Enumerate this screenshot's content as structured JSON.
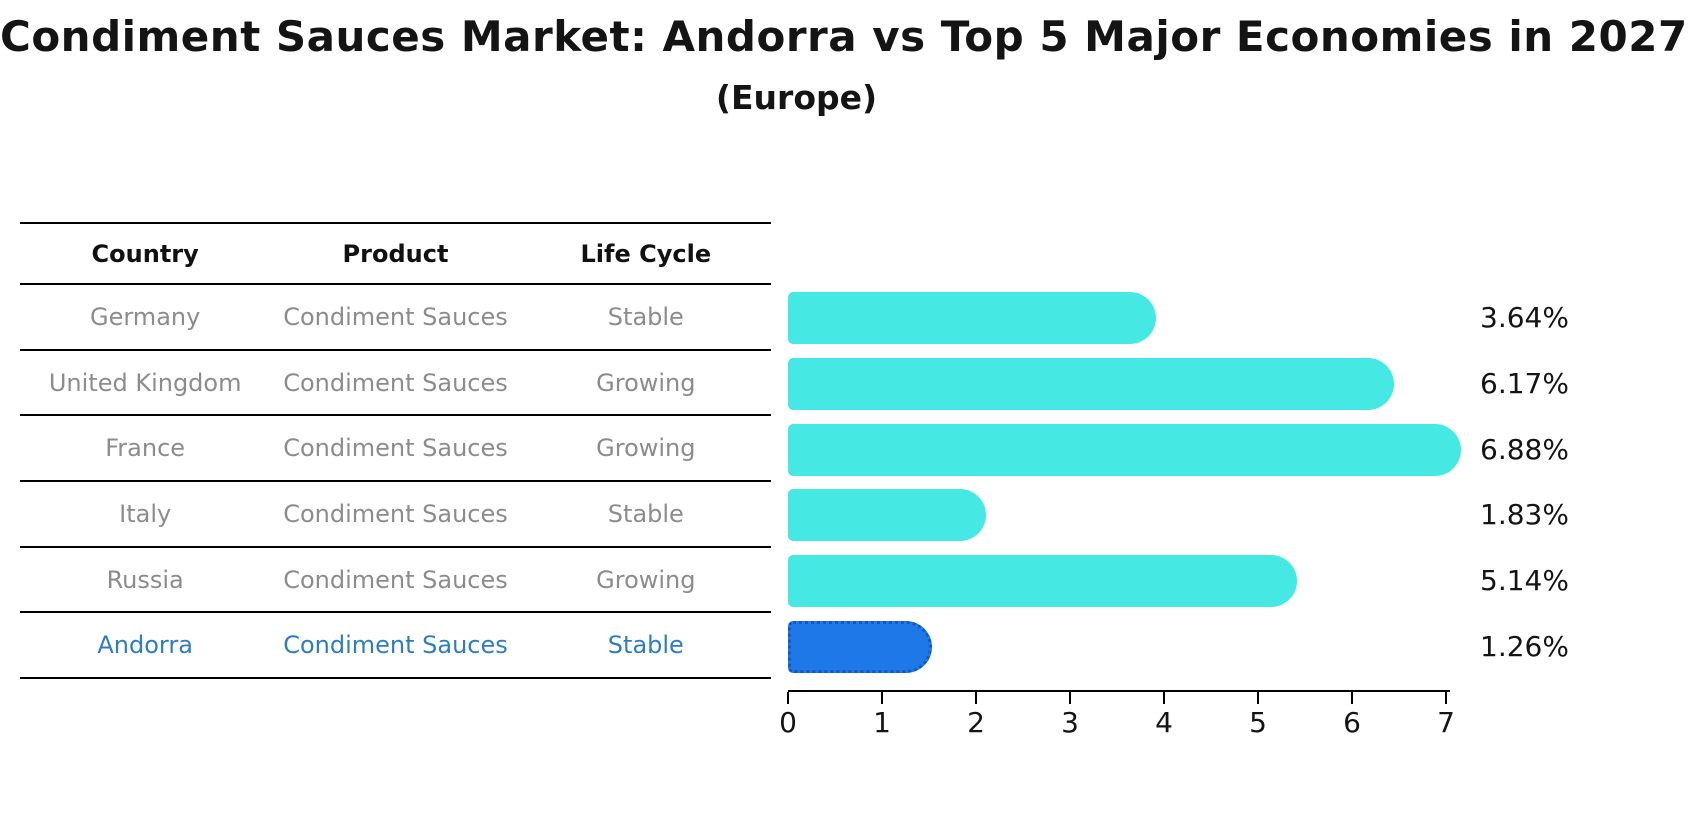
{
  "title": "Condiment Sauces Market: Andorra vs Top 5 Major Economies in 2027",
  "subtitle": "(Europe)",
  "table": {
    "columns": [
      "Country",
      "Product",
      "Life Cycle"
    ],
    "rows": [
      {
        "country": "Germany",
        "product": "Condiment Sauces",
        "life_cycle": "Stable",
        "highlight": false
      },
      {
        "country": "United Kingdom",
        "product": "Condiment Sauces",
        "life_cycle": "Growing",
        "highlight": false
      },
      {
        "country": "France",
        "product": "Condiment Sauces",
        "life_cycle": "Growing",
        "highlight": false
      },
      {
        "country": "Italy",
        "product": "Condiment Sauces",
        "life_cycle": "Stable",
        "highlight": false
      },
      {
        "country": "Russia",
        "product": "Condiment Sauces",
        "life_cycle": "Growing",
        "highlight": false
      },
      {
        "country": "Andorra",
        "product": "Condiment Sauces",
        "life_cycle": "Stable",
        "highlight": true
      }
    ]
  },
  "chart_data": {
    "type": "bar",
    "orientation": "horizontal",
    "title": "Condiment Sauces Market: Andorra vs Top 5 Major Economies in 2027",
    "subtitle": "(Europe)",
    "categories": [
      "Germany",
      "United Kingdom",
      "France",
      "Italy",
      "Russia",
      "Andorra"
    ],
    "values": [
      3.64,
      6.17,
      6.88,
      1.83,
      5.14,
      1.26
    ],
    "value_labels": [
      "3.64%",
      "6.17%",
      "6.88%",
      "1.83%",
      "5.14%",
      "1.26%"
    ],
    "xlabel": "",
    "ylabel": "",
    "xlim": [
      0,
      7.05
    ],
    "xticks": [
      0,
      1,
      2,
      3,
      4,
      5,
      6,
      7
    ],
    "grid": false,
    "legend": "none",
    "highlight_index": 5,
    "bar_color": "#46e8e3",
    "highlight_bar_color": "#1f78e8",
    "highlight_border_color": "#1457c5",
    "highlight_text_color": "#2e7ebf",
    "row_text_color": "#8c8c8c"
  }
}
